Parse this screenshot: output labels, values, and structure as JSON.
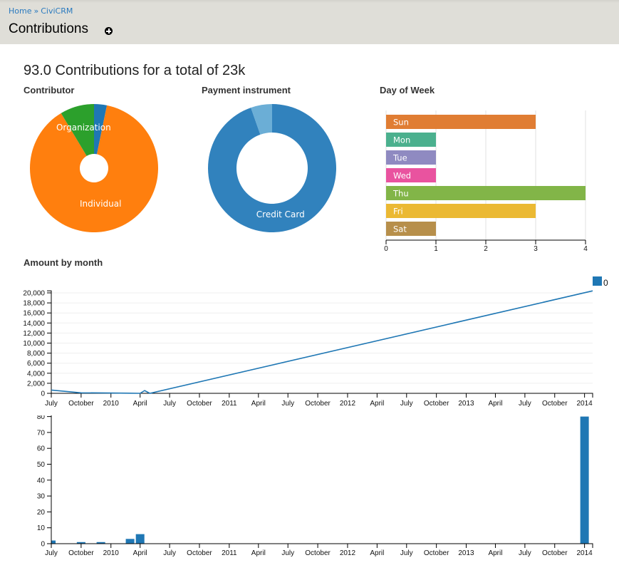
{
  "breadcrumb": {
    "items": [
      "Home",
      "CiviCRM"
    ],
    "separator": "»"
  },
  "page_title": "Contributions",
  "header_action_icon": "plus-circle-icon",
  "summary_title": "93.0 Contributions for a total of 23k",
  "colors": {
    "link": "#2a7abf",
    "header_bg": "#dfded8",
    "series": "#1f77b4"
  },
  "chart_data": [
    {
      "type": "pie",
      "title": "Contributor",
      "slices": [
        {
          "label": "",
          "value": 3,
          "color": "#1f77b4"
        },
        {
          "label": "Individual",
          "value": 82,
          "color": "#ff7f0e"
        },
        {
          "label": "Organization",
          "value": 8,
          "color": "#2ca02c"
        }
      ]
    },
    {
      "type": "pie",
      "title": "Payment instrument",
      "donut": true,
      "slices": [
        {
          "label": "Credit Card",
          "value": 88,
          "color": "#3182bd"
        },
        {
          "label": "",
          "value": 5,
          "color": "#6baed6"
        }
      ]
    },
    {
      "type": "bar",
      "orientation": "horizontal",
      "title": "Day of Week",
      "categories": [
        "Sun",
        "Mon",
        "Tue",
        "Wed",
        "Thu",
        "Fri",
        "Sat"
      ],
      "values": [
        3,
        1,
        1,
        1,
        4,
        3,
        1
      ],
      "colors": [
        "#e07d33",
        "#4bb08e",
        "#8f8ac1",
        "#e9539f",
        "#82b548",
        "#ebb933",
        "#b78f4b"
      ],
      "xlim": [
        0,
        4
      ],
      "x_ticks": [
        {
          "value": 0,
          "label": "0"
        },
        {
          "value": 1,
          "label": "1"
        },
        {
          "value": 2,
          "label": "2"
        },
        {
          "value": 3,
          "label": "3"
        },
        {
          "value": 4,
          "label": "4"
        }
      ],
      "grid": true
    },
    {
      "type": "line",
      "title": "Amount by month",
      "xlabel": "",
      "ylabel": "",
      "x_domain": [
        "2009-07-01",
        "2014-01-26"
      ],
      "ylim": [
        0,
        20400
      ],
      "color": "#1f77b4",
      "legend": [
        {
          "label": "0",
          "color": "#1f77b4"
        }
      ],
      "legend_position": "top-right",
      "grid": true,
      "points": [
        {
          "date": "2009-07-01",
          "value": 650
        },
        {
          "date": "2009-10-01",
          "value": 100
        },
        {
          "date": "2009-12-01",
          "value": 80
        },
        {
          "date": "2010-03-01",
          "value": 30
        },
        {
          "date": "2010-04-01",
          "value": 0
        },
        {
          "date": "2010-04-15",
          "value": 550
        },
        {
          "date": "2010-05-01",
          "value": 0
        },
        {
          "date": "2014-01-26",
          "value": 20400
        }
      ],
      "y_ticks": [
        {
          "value": 0,
          "label": "0"
        },
        {
          "value": 2000,
          "label": "2,000"
        },
        {
          "value": 4000,
          "label": "4,000"
        },
        {
          "value": 6000,
          "label": "6,000"
        },
        {
          "value": 8000,
          "label": "8,000"
        },
        {
          "value": 10000,
          "label": "10,000"
        },
        {
          "value": 12000,
          "label": "12,000"
        },
        {
          "value": 14000,
          "label": "14,000"
        },
        {
          "value": 16000,
          "label": "16,000"
        },
        {
          "value": 18000,
          "label": "18,000"
        },
        {
          "value": 20000,
          "label": "20,000"
        }
      ],
      "x_ticks": [
        {
          "date": "2009-07-01",
          "label": "July"
        },
        {
          "date": "2009-10-01",
          "label": "October"
        },
        {
          "date": "2010-01-01",
          "label": "2010"
        },
        {
          "date": "2010-04-01",
          "label": "April"
        },
        {
          "date": "2010-07-01",
          "label": "July"
        },
        {
          "date": "2010-10-01",
          "label": "October"
        },
        {
          "date": "2011-01-01",
          "label": "2011"
        },
        {
          "date": "2011-04-01",
          "label": "April"
        },
        {
          "date": "2011-07-01",
          "label": "July"
        },
        {
          "date": "2011-10-01",
          "label": "October"
        },
        {
          "date": "2012-01-01",
          "label": "2012"
        },
        {
          "date": "2012-04-01",
          "label": "April"
        },
        {
          "date": "2012-07-01",
          "label": "July"
        },
        {
          "date": "2012-10-01",
          "label": "October"
        },
        {
          "date": "2013-01-01",
          "label": "2013"
        },
        {
          "date": "2013-04-01",
          "label": "April"
        },
        {
          "date": "2013-07-01",
          "label": "July"
        },
        {
          "date": "2013-10-01",
          "label": "October"
        },
        {
          "date": "2014-01-01",
          "label": "2014"
        }
      ]
    },
    {
      "type": "bar",
      "title": "",
      "xlabel": "",
      "ylabel": "",
      "x_domain": [
        "2009-07-01",
        "2014-01-26"
      ],
      "ylim": [
        0,
        81
      ],
      "color": "#1f77b4",
      "bars": [
        {
          "date": "2009-07-01",
          "value": 2
        },
        {
          "date": "2009-10-01",
          "value": 1
        },
        {
          "date": "2009-12-01",
          "value": 1
        },
        {
          "date": "2010-03-01",
          "value": 3
        },
        {
          "date": "2010-04-01",
          "value": 6
        },
        {
          "date": "2014-01-01",
          "value": 80
        }
      ],
      "y_ticks": [
        {
          "value": 0,
          "label": "0"
        },
        {
          "value": 10,
          "label": "10"
        },
        {
          "value": 20,
          "label": "20"
        },
        {
          "value": 30,
          "label": "30"
        },
        {
          "value": 40,
          "label": "40"
        },
        {
          "value": 50,
          "label": "50"
        },
        {
          "value": 60,
          "label": "60"
        },
        {
          "value": 70,
          "label": "70"
        },
        {
          "value": 80,
          "label": "80"
        }
      ],
      "x_ticks": [
        {
          "date": "2009-07-01",
          "label": "July"
        },
        {
          "date": "2009-10-01",
          "label": "October"
        },
        {
          "date": "2010-01-01",
          "label": "2010"
        },
        {
          "date": "2010-04-01",
          "label": "April"
        },
        {
          "date": "2010-07-01",
          "label": "July"
        },
        {
          "date": "2010-10-01",
          "label": "October"
        },
        {
          "date": "2011-01-01",
          "label": "2011"
        },
        {
          "date": "2011-04-01",
          "label": "April"
        },
        {
          "date": "2011-07-01",
          "label": "July"
        },
        {
          "date": "2011-10-01",
          "label": "October"
        },
        {
          "date": "2012-01-01",
          "label": "2012"
        },
        {
          "date": "2012-04-01",
          "label": "April"
        },
        {
          "date": "2012-07-01",
          "label": "July"
        },
        {
          "date": "2012-10-01",
          "label": "October"
        },
        {
          "date": "2013-01-01",
          "label": "2013"
        },
        {
          "date": "2013-04-01",
          "label": "April"
        },
        {
          "date": "2013-07-01",
          "label": "July"
        },
        {
          "date": "2013-10-01",
          "label": "October"
        },
        {
          "date": "2014-01-01",
          "label": "2014"
        }
      ]
    }
  ]
}
